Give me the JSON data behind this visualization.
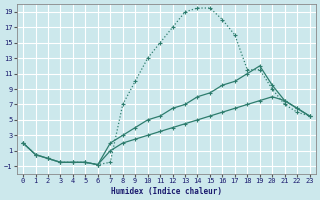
{
  "xlabel": "Humidex (Indice chaleur)",
  "background_color": "#cce8ec",
  "grid_color": "#ffffff",
  "line_color": "#2e7d6e",
  "xlim": [
    -0.5,
    23.5
  ],
  "ylim": [
    -2,
    20
  ],
  "yticks": [
    -1,
    1,
    3,
    5,
    7,
    9,
    11,
    13,
    15,
    17,
    19
  ],
  "xticks": [
    0,
    1,
    2,
    3,
    4,
    5,
    6,
    7,
    8,
    9,
    10,
    11,
    12,
    13,
    14,
    15,
    16,
    17,
    18,
    19,
    20,
    21,
    22,
    23
  ],
  "line1_x": [
    0,
    1,
    2,
    3,
    4,
    5,
    6,
    7,
    8,
    9,
    10,
    11,
    12,
    13,
    14,
    15,
    16,
    17,
    18,
    19,
    20,
    21,
    22,
    23
  ],
  "line1_y": [
    2,
    0.5,
    0,
    -0.5,
    -0.5,
    -0.5,
    -0.8,
    -0.5,
    7,
    10,
    13,
    15,
    17,
    19,
    19.5,
    19.5,
    18,
    16,
    11.5,
    11.5,
    9,
    7,
    6,
    5.5
  ],
  "line2_x": [
    0,
    1,
    2,
    3,
    4,
    5,
    6,
    7,
    8,
    9,
    10,
    11,
    12,
    13,
    14,
    15,
    16,
    17,
    18,
    19,
    20,
    21,
    22,
    23
  ],
  "line2_y": [
    2,
    0.5,
    0,
    -0.5,
    -0.5,
    -0.5,
    -0.8,
    2,
    3,
    4,
    5,
    5.5,
    6.5,
    7,
    8,
    8.5,
    9.5,
    10,
    11,
    12,
    9.5,
    7.5,
    6.5,
    5.5
  ],
  "line3_x": [
    0,
    1,
    2,
    3,
    4,
    5,
    6,
    7,
    8,
    9,
    10,
    11,
    12,
    13,
    14,
    15,
    16,
    17,
    18,
    19,
    20,
    21,
    22,
    23
  ],
  "line3_y": [
    2,
    0.5,
    0,
    -0.5,
    -0.5,
    -0.5,
    -0.8,
    1,
    2,
    2.5,
    3,
    3.5,
    4,
    4.5,
    5,
    5.5,
    6,
    6.5,
    7,
    7.5,
    8,
    7.5,
    6.5,
    5.5
  ]
}
